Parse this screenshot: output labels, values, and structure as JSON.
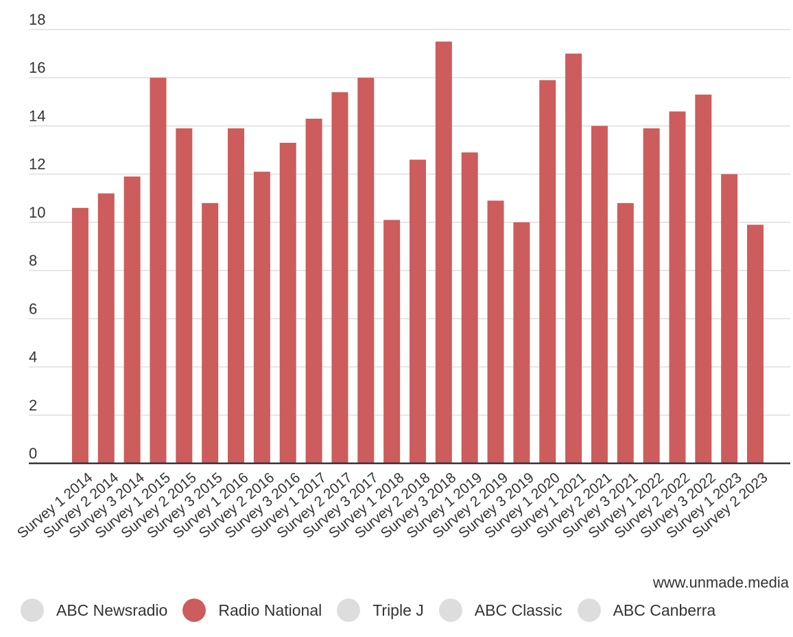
{
  "colors": {
    "active": "#cd5c5c",
    "inactive": "#dddddd",
    "grid": "#dddddd",
    "axis": "#333333"
  },
  "source": "www.unmade.media",
  "legend": [
    {
      "label": "ABC Newsradio",
      "active": false
    },
    {
      "label": "Radio National",
      "active": true
    },
    {
      "label": "Triple J",
      "active": false
    },
    {
      "label": "ABC Classic",
      "active": false
    },
    {
      "label": "ABC Canberra",
      "active": false
    }
  ],
  "chart_data": {
    "type": "bar",
    "ylim": [
      0,
      18
    ],
    "yticks": [
      0,
      2,
      4,
      6,
      8,
      10,
      12,
      14,
      16,
      18
    ],
    "grid": true,
    "legend_position": "bottom",
    "categories": [
      "Survey 1 2014",
      "Survey 2 2014",
      "Survey 3 2014",
      "Survey 1 2015",
      "Survey 2 2015",
      "Survey 3 2015",
      "Survey 1 2016",
      "Survey 2 2016",
      "Survey 3 2016",
      "Survey 1 2017",
      "Survey 2 2017",
      "Survey 3 2017",
      "Survey 1 2018",
      "Survey 2 2018",
      "Survey 3 2018",
      "Survey 1 2019",
      "Survey 2 2019",
      "Survey 3 2019",
      "Survey 1 2020",
      "Survey 1 2021",
      "Survey 2 2021",
      "Survey 3 2021",
      "Survey 1 2022",
      "Survey 2 2022",
      "Survey 3 2022",
      "Survey 1 2023",
      "Survey 2 2023"
    ],
    "series": [
      {
        "name": "Radio National",
        "values": [
          10.6,
          11.2,
          11.9,
          16.0,
          13.9,
          10.8,
          13.9,
          12.1,
          13.3,
          14.3,
          15.4,
          16.0,
          10.1,
          12.6,
          17.5,
          12.9,
          10.9,
          10.0,
          15.9,
          17.0,
          14.0,
          10.8,
          13.9,
          14.6,
          15.3,
          12.0,
          9.9
        ]
      }
    ]
  }
}
